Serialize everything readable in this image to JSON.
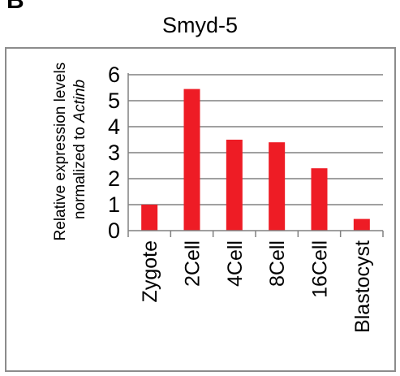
{
  "panel_label": "B",
  "chart_data": {
    "type": "bar",
    "title": "Smyd-5",
    "categories": [
      "Zygote",
      "2Cell",
      "4Cell",
      "8Cell",
      "16Cell",
      "Blastocyst"
    ],
    "values": [
      1.0,
      5.45,
      3.5,
      3.4,
      2.4,
      0.45
    ],
    "ylabel_line1": "Relative expression levels",
    "ylabel_line2_prefix": "normalized to ",
    "ylabel_line2_italic": "Actinb",
    "ylim": [
      0,
      6
    ],
    "yticks": [
      0,
      1,
      2,
      3,
      4,
      5,
      6
    ],
    "grid": true,
    "bar_color": "#ee1c25",
    "grid_color": "#808080",
    "axis_color": "#808080",
    "legend": "none"
  }
}
